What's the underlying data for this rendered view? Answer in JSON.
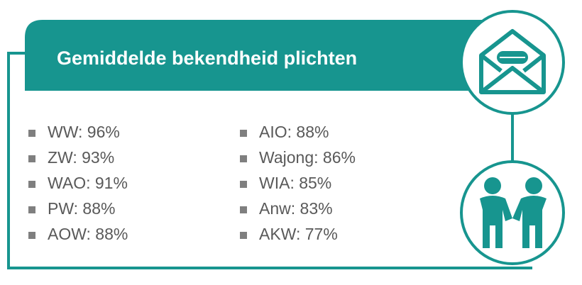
{
  "title": "Gemiddelde bekendheid plichten",
  "columns": [
    [
      "WW: 96%",
      "ZW: 93%",
      "WAO: 91%",
      "PW: 88%",
      "AOW: 88%"
    ],
    [
      "AIO: 88%",
      "Wajong: 86%",
      "WIA: 85%",
      "Anw: 83%",
      "AKW: 77%"
    ]
  ]
}
